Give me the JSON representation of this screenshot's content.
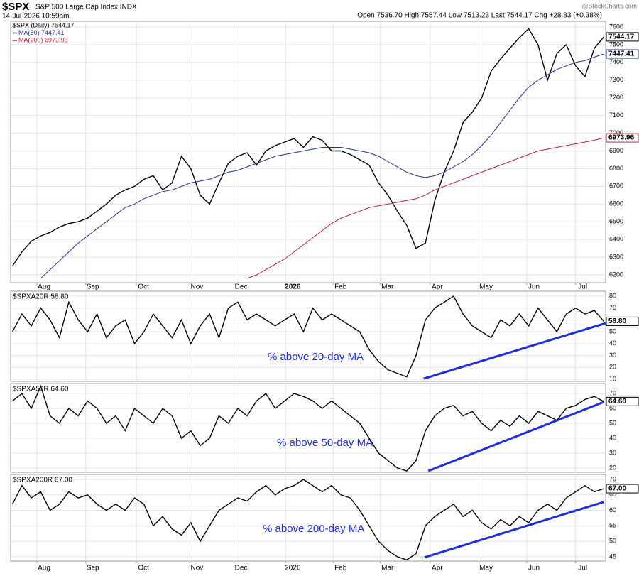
{
  "chart_data": [
    {
      "type": "line",
      "title": "$SPX",
      "subtitle": "S&P 500 Large Cap Index INDX",
      "date": "14-Jul-2026 10:59am",
      "quote": "Open 7536.70 High 7557.44 Low 7513.23 Last 7544.17 Chg +28.83 (+0.38%)",
      "source": "@StockCharts.com",
      "xlim": [
        -0.2,
        63.2
      ],
      "xticks": [
        {
          "value": 2.6,
          "label": "Aug"
        },
        {
          "value": 7.8,
          "label": "Sep"
        },
        {
          "value": 13.2,
          "label": "Oct"
        },
        {
          "value": 18.9,
          "label": "Nov"
        },
        {
          "value": 23.6,
          "label": "Dec"
        },
        {
          "value": 29.1,
          "label": "2026"
        },
        {
          "value": 34.2,
          "label": "Feb"
        },
        {
          "value": 39.2,
          "label": "Mar"
        },
        {
          "value": 44.5,
          "label": "Apr"
        },
        {
          "value": 49.7,
          "label": "May"
        },
        {
          "value": 54.8,
          "label": "Jun"
        },
        {
          "value": 60,
          "label": "Jul"
        }
      ],
      "ylim": [
        6156,
        7632
      ],
      "yticks": [
        6200,
        6300,
        6400,
        6500,
        6600,
        6700,
        6800,
        6900,
        7000,
        7100,
        7200,
        7300,
        7400,
        7500,
        7600
      ],
      "grid": true,
      "series": [
        {
          "name": "$SPX (Daily) 7544.17",
          "color": "#000000",
          "last": "7544.17",
          "values": [
            6250,
            6330,
            6390,
            6420,
            6440,
            6470,
            6490,
            6500,
            6520,
            6560,
            6600,
            6650,
            6680,
            6700,
            6740,
            6760,
            6680,
            6720,
            6870,
            6800,
            6650,
            6600,
            6720,
            6830,
            6870,
            6890,
            6820,
            6900,
            6930,
            6950,
            6970,
            6920,
            6980,
            6960,
            6900,
            6900,
            6880,
            6850,
            6820,
            6720,
            6650,
            6560,
            6480,
            6350,
            6380,
            6620,
            6780,
            6900,
            7060,
            7120,
            7200,
            7350,
            7420,
            7480,
            7540,
            7590,
            7500,
            7300,
            7450,
            7500,
            7380,
            7320,
            7480,
            7544.17
          ]
        },
        {
          "name": "MA(50) 7447.41",
          "color": "#26358c",
          "last": "7447.41",
          "values": [
            null,
            null,
            null,
            6180,
            6230,
            6280,
            6330,
            6380,
            6420,
            6460,
            6500,
            6540,
            6580,
            6600,
            6630,
            6650,
            6670,
            6680,
            6700,
            6720,
            6730,
            6740,
            6760,
            6780,
            6790,
            6810,
            6830,
            6850,
            6870,
            6880,
            6890,
            6900,
            6910,
            6920,
            6920,
            6920,
            6910,
            6900,
            6890,
            6870,
            6840,
            6810,
            6780,
            6760,
            6750,
            6760,
            6780,
            6810,
            6840,
            6880,
            6930,
            6990,
            7060,
            7130,
            7200,
            7260,
            7300,
            7330,
            7360,
            7380,
            7400,
            7410,
            7430,
            7447.41
          ]
        },
        {
          "name": "MA(200) 6973.96",
          "color": "#c41e3a",
          "last": "6973.96",
          "values": [
            null,
            null,
            null,
            null,
            null,
            null,
            null,
            null,
            null,
            null,
            null,
            null,
            null,
            null,
            null,
            null,
            null,
            null,
            null,
            null,
            null,
            null,
            null,
            null,
            null,
            6180,
            6200,
            6230,
            6260,
            6290,
            6330,
            6370,
            6410,
            6450,
            6490,
            6520,
            6540,
            6560,
            6580,
            6590,
            6600,
            6610,
            6620,
            6630,
            6650,
            6680,
            6700,
            6720,
            6740,
            6760,
            6780,
            6800,
            6820,
            6840,
            6860,
            6880,
            6900,
            6910,
            6920,
            6930,
            6940,
            6950,
            6960,
            6973.96
          ]
        }
      ]
    },
    {
      "type": "line",
      "title": "$SPXA20R 58.80",
      "annotation": "% above 20-day MA",
      "xlim": [
        -0.2,
        63.2
      ],
      "ylim": [
        8.2,
        84.2
      ],
      "yticks": [
        10,
        20,
        30,
        40,
        50,
        60,
        70,
        80
      ],
      "grid": true,
      "series": [
        {
          "name": "$SPXA20R",
          "color": "#000000",
          "last": "58.80",
          "values": [
            50,
            65,
            55,
            70,
            60,
            45,
            75,
            60,
            50,
            65,
            45,
            55,
            60,
            40,
            50,
            65,
            55,
            45,
            60,
            40,
            55,
            65,
            45,
            70,
            75,
            60,
            65,
            60,
            55,
            60,
            65,
            50,
            70,
            60,
            65,
            60,
            55,
            50,
            35,
            25,
            18,
            15,
            12,
            30,
            60,
            70,
            75,
            80,
            65,
            55,
            50,
            45,
            60,
            55,
            65,
            55,
            70,
            60,
            50,
            65,
            70,
            65,
            68,
            58.8
          ]
        }
      ],
      "trendline": {
        "color": "#1f2de0",
        "x": [
          43.8,
          63.2
        ],
        "values": [
          10.5,
          57.2
        ]
      }
    },
    {
      "type": "line",
      "title": "$SPXA50R 64.60",
      "annotation": "% above 50-day MA",
      "xlim": [
        -0.2,
        63.2
      ],
      "ylim": [
        17.1,
        76.7
      ],
      "yticks": [
        20,
        30,
        40,
        50,
        60,
        70
      ],
      "grid": true,
      "series": [
        {
          "name": "$SPXA50R",
          "color": "#000000",
          "last": "64.60",
          "values": [
            65,
            70,
            60,
            75,
            55,
            50,
            60,
            55,
            65,
            60,
            50,
            55,
            45,
            60,
            55,
            50,
            60,
            55,
            40,
            45,
            35,
            40,
            55,
            50,
            60,
            55,
            65,
            70,
            60,
            65,
            70,
            68,
            65,
            60,
            65,
            60,
            55,
            50,
            40,
            30,
            25,
            20,
            18,
            25,
            45,
            55,
            60,
            62,
            55,
            58,
            50,
            45,
            52,
            48,
            55,
            50,
            58,
            55,
            52,
            60,
            62,
            66,
            68,
            64.6
          ]
        }
      ],
      "trendline": {
        "color": "#1f2de0",
        "x": [
          44.3,
          63.0
        ],
        "values": [
          18,
          64.3
        ]
      }
    },
    {
      "type": "line",
      "title": "$SPXA200R 67.00",
      "annotation": "% above 200-day MA",
      "xlim": [
        -0.2,
        63.2
      ],
      "xticks": [
        {
          "value": 2.6,
          "label": "Aug"
        },
        {
          "value": 7.8,
          "label": "Sep"
        },
        {
          "value": 13.2,
          "label": "Oct"
        },
        {
          "value": 18.9,
          "label": "Nov"
        },
        {
          "value": 23.6,
          "label": "Dec"
        },
        {
          "value": 29.1,
          "label": "2026"
        },
        {
          "value": 34.2,
          "label": "Feb"
        },
        {
          "value": 39.2,
          "label": "Mar"
        },
        {
          "value": 44.5,
          "label": "Apr"
        },
        {
          "value": 49.7,
          "label": "May"
        },
        {
          "value": 54.8,
          "label": "Jun"
        },
        {
          "value": 60,
          "label": "Jul"
        }
      ],
      "ylim": [
        43.6,
        71.6
      ],
      "yticks": [
        45,
        50,
        55,
        60,
        65,
        70
      ],
      "grid": true,
      "series": [
        {
          "name": "$SPXA200R",
          "color": "#000000",
          "last": "67.00",
          "values": [
            62,
            68,
            64,
            66,
            60,
            62,
            66,
            64,
            65,
            62,
            60,
            62,
            60,
            64,
            62,
            55,
            58,
            54,
            52,
            56,
            50,
            55,
            60,
            62,
            64,
            63,
            66,
            68,
            65,
            67,
            68,
            70,
            68,
            66,
            68,
            65,
            64,
            60,
            55,
            50,
            47,
            45,
            44,
            46,
            55,
            58,
            60,
            62,
            58,
            60,
            56,
            54,
            57,
            55,
            58,
            56,
            60,
            62,
            60,
            64,
            66,
            68,
            66,
            67
          ]
        }
      ],
      "trendline": {
        "color": "#1f2de0",
        "x": [
          43.9,
          63.0
        ],
        "values": [
          44.8,
          62.7
        ]
      }
    }
  ]
}
